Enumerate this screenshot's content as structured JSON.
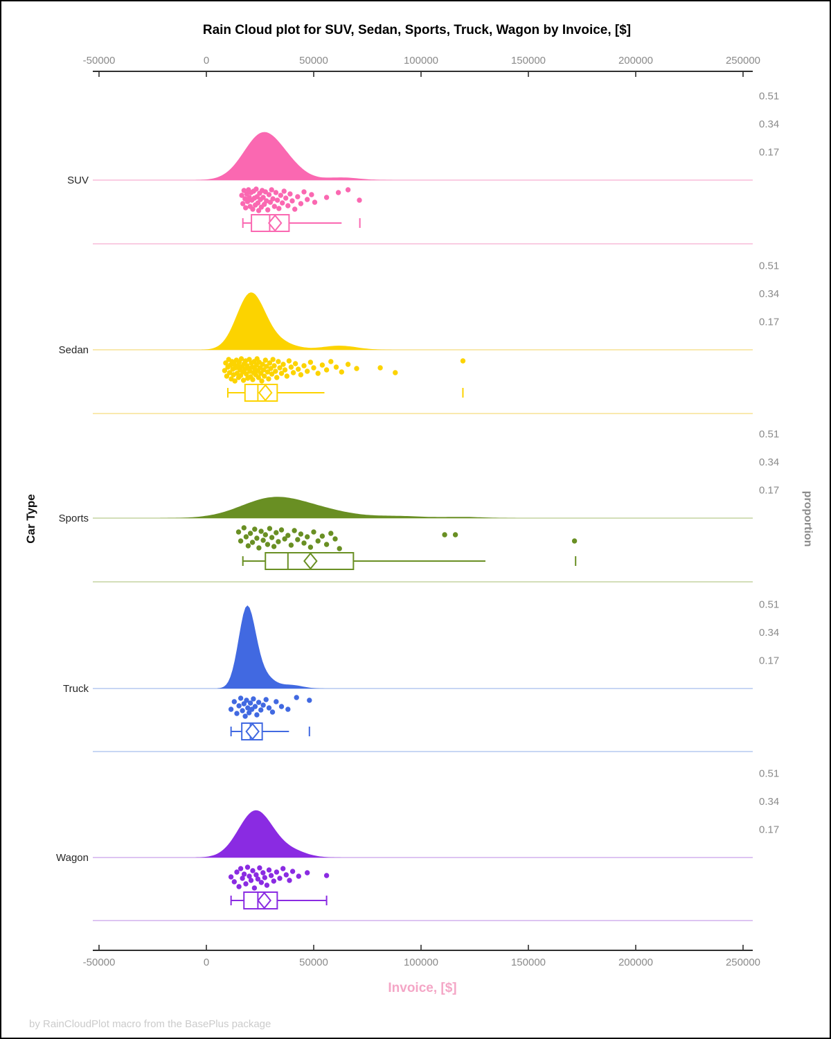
{
  "title": "Rain Cloud plot for SUV, Sedan, Sports, Truck, Wagon by Invoice, [$]",
  "footer": {
    "text": "by RainCloudPlot macro from the BasePlus package"
  },
  "x_axis": {
    "label": "Invoice, [$]",
    "tick_values": [
      -50000,
      0,
      50000,
      100000,
      150000,
      200000,
      250000
    ],
    "tick_labels": [
      "-50000",
      "0",
      "50000",
      "100000",
      "150000",
      "200000",
      "250000"
    ]
  },
  "left_axis": {
    "label": "Car Type"
  },
  "right_axis": {
    "label": "proportion",
    "tick_values": [
      0.17,
      0.34,
      0.51
    ],
    "tick_labels": [
      "0.17",
      "0.34",
      "0.51"
    ]
  },
  "styles": {
    "axis_color": "#2F2F2F",
    "tick_label_color": "#8A8A8A",
    "x_title_color": "#F4A6C6",
    "footer_color": "#CBCBCB"
  },
  "chart_data": {
    "type": "raincloud",
    "x_unit": "USD",
    "xlim": [
      -53000,
      254000
    ],
    "proportion_ticks": [
      0.17,
      0.34,
      0.51
    ],
    "legend_position": "none",
    "grid": false,
    "categories": [
      {
        "label": "SUV",
        "color": "#FA68B1",
        "tint": "#FAC4DE",
        "density_components": [
          {
            "mu": 26500,
            "sd": 9000,
            "h": 0.285
          },
          {
            "mu": 40000,
            "sd": 7000,
            "h": 0.04
          },
          {
            "mu": 63000,
            "sd": 8000,
            "h": 0.016
          }
        ],
        "box": {
          "whisker_low": 17000,
          "q1": 21000,
          "median": 29500,
          "q3": 38500,
          "whisker_high": 63000,
          "mean": 32000,
          "far_value": 71500,
          "right_cap": false
        },
        "rain": [
          [
            16500,
            22
          ],
          [
            17000,
            34
          ],
          [
            17500,
            15
          ],
          [
            18000,
            27
          ],
          [
            18300,
            40
          ],
          [
            18800,
            20
          ],
          [
            19200,
            31
          ],
          [
            19600,
            14
          ],
          [
            20000,
            25
          ],
          [
            20400,
            38
          ],
          [
            20800,
            18
          ],
          [
            21200,
            29
          ],
          [
            21600,
            42
          ],
          [
            22000,
            16
          ],
          [
            22400,
            26
          ],
          [
            22800,
            36
          ],
          [
            23200,
            13
          ],
          [
            23600,
            24
          ],
          [
            24000,
            33
          ],
          [
            24400,
            44
          ],
          [
            24800,
            19
          ],
          [
            25200,
            28
          ],
          [
            25600,
            39
          ],
          [
            26000,
            15
          ],
          [
            26500,
            25
          ],
          [
            27000,
            35
          ],
          [
            27500,
            17
          ],
          [
            28000,
            30
          ],
          [
            28600,
            43
          ],
          [
            29200,
            21
          ],
          [
            29800,
            32
          ],
          [
            30400,
            14
          ],
          [
            31000,
            27
          ],
          [
            31700,
            38
          ],
          [
            32400,
            18
          ],
          [
            33100,
            29
          ],
          [
            33800,
            41
          ],
          [
            34600,
            22
          ],
          [
            35400,
            33
          ],
          [
            36200,
            16
          ],
          [
            37000,
            26
          ],
          [
            38000,
            37
          ],
          [
            39000,
            20
          ],
          [
            40000,
            30
          ],
          [
            41200,
            42
          ],
          [
            42500,
            24
          ],
          [
            44000,
            34
          ],
          [
            45500,
            17
          ],
          [
            47000,
            28
          ],
          [
            49000,
            21
          ],
          [
            50500,
            32
          ],
          [
            56000,
            25
          ],
          [
            61500,
            18
          ],
          [
            66000,
            14
          ],
          [
            71300,
            29
          ]
        ]
      },
      {
        "label": "Sedan",
        "color": "#FCD300",
        "tint": "#F8E6A2",
        "density_components": [
          {
            "mu": 20500,
            "sd": 6500,
            "h": 0.33
          },
          {
            "mu": 32000,
            "sd": 8000,
            "h": 0.05
          },
          {
            "mu": 62000,
            "sd": 8000,
            "h": 0.025
          }
        ],
        "box": {
          "whisker_low": 10000,
          "q1": 18000,
          "median": 24000,
          "q3": 33000,
          "whisker_high": 55000,
          "mean": 27500,
          "far_value": 119500,
          "right_cap": false
        },
        "rain": [
          [
            8500,
            30
          ],
          [
            9000,
            19
          ],
          [
            9500,
            38
          ],
          [
            10000,
            25
          ],
          [
            10400,
            14
          ],
          [
            10800,
            33
          ],
          [
            11200,
            22
          ],
          [
            11600,
            42
          ],
          [
            12000,
            17
          ],
          [
            12300,
            28
          ],
          [
            12600,
            36
          ],
          [
            13000,
            21
          ],
          [
            13300,
            45
          ],
          [
            13600,
            26
          ],
          [
            14000,
            15
          ],
          [
            14300,
            34
          ],
          [
            14600,
            23
          ],
          [
            15000,
            40
          ],
          [
            15300,
            18
          ],
          [
            15600,
            29
          ],
          [
            16000,
            37
          ],
          [
            16300,
            13
          ],
          [
            16600,
            24
          ],
          [
            17000,
            32
          ],
          [
            17300,
            44
          ],
          [
            17600,
            20
          ],
          [
            18000,
            28
          ],
          [
            18300,
            16
          ],
          [
            18600,
            35
          ],
          [
            19000,
            23
          ],
          [
            19300,
            41
          ],
          [
            19600,
            27
          ],
          [
            20000,
            14
          ],
          [
            20300,
            31
          ],
          [
            20600,
            39
          ],
          [
            21000,
            19
          ],
          [
            21300,
            25
          ],
          [
            21600,
            43
          ],
          [
            22000,
            33
          ],
          [
            22300,
            17
          ],
          [
            22600,
            28
          ],
          [
            23000,
            36
          ],
          [
            23300,
            22
          ],
          [
            23600,
            13
          ],
          [
            24000,
            30
          ],
          [
            24300,
            40
          ],
          [
            24600,
            18
          ],
          [
            25000,
            26
          ],
          [
            25400,
            34
          ],
          [
            25800,
            45
          ],
          [
            26200,
            21
          ],
          [
            26600,
            29
          ],
          [
            27000,
            38
          ],
          [
            27500,
            15
          ],
          [
            28000,
            24
          ],
          [
            28500,
            32
          ],
          [
            29000,
            42
          ],
          [
            29500,
            19
          ],
          [
            30000,
            27
          ],
          [
            30500,
            35
          ],
          [
            31000,
            14
          ],
          [
            31600,
            23
          ],
          [
            32200,
            31
          ],
          [
            32800,
            40
          ],
          [
            33500,
            17
          ],
          [
            34200,
            26
          ],
          [
            35000,
            34
          ],
          [
            35800,
            21
          ],
          [
            36600,
            29
          ],
          [
            37500,
            38
          ],
          [
            38500,
            16
          ],
          [
            39500,
            25
          ],
          [
            40500,
            33
          ],
          [
            41500,
            20
          ],
          [
            42800,
            28
          ],
          [
            44000,
            36
          ],
          [
            45500,
            23
          ],
          [
            47000,
            31
          ],
          [
            48500,
            18
          ],
          [
            50000,
            26
          ],
          [
            52000,
            34
          ],
          [
            54000,
            22
          ],
          [
            56000,
            29
          ],
          [
            58000,
            17
          ],
          [
            60500,
            25
          ],
          [
            63000,
            32
          ],
          [
            66000,
            21
          ],
          [
            70000,
            27
          ],
          [
            81000,
            26
          ],
          [
            88000,
            33
          ],
          [
            119500,
            16
          ]
        ]
      },
      {
        "label": "Sports",
        "color": "#698F23",
        "tint": "#CDDAAE",
        "density_components": [
          {
            "mu": 31000,
            "sd": 15000,
            "h": 0.12
          },
          {
            "mu": 55000,
            "sd": 14000,
            "h": 0.035
          },
          {
            "mu": 90000,
            "sd": 12000,
            "h": 0.012
          },
          {
            "mu": 120000,
            "sd": 9000,
            "h": 0.007
          }
        ],
        "box": {
          "whisker_low": 17000,
          "q1": 27500,
          "median": 38000,
          "q3": 68500,
          "whisker_high": 130000,
          "mean": 48500,
          "far_value": 172000,
          "right_cap": false
        },
        "rain": [
          [
            15000,
            20
          ],
          [
            16000,
            33
          ],
          [
            17500,
            14
          ],
          [
            18500,
            27
          ],
          [
            19500,
            40
          ],
          [
            20500,
            22
          ],
          [
            21500,
            35
          ],
          [
            22500,
            16
          ],
          [
            23500,
            29
          ],
          [
            24500,
            43
          ],
          [
            25500,
            19
          ],
          [
            26500,
            32
          ],
          [
            27500,
            24
          ],
          [
            28500,
            38
          ],
          [
            29500,
            15
          ],
          [
            30500,
            28
          ],
          [
            31500,
            41
          ],
          [
            32500,
            21
          ],
          [
            33500,
            34
          ],
          [
            35000,
            17
          ],
          [
            36500,
            30
          ],
          [
            38000,
            25
          ],
          [
            39500,
            39
          ],
          [
            41000,
            18
          ],
          [
            42500,
            31
          ],
          [
            44000,
            23
          ],
          [
            45500,
            36
          ],
          [
            47000,
            27
          ],
          [
            48500,
            42
          ],
          [
            50000,
            20
          ],
          [
            52000,
            33
          ],
          [
            54000,
            26
          ],
          [
            56000,
            38
          ],
          [
            58000,
            22
          ],
          [
            60000,
            30
          ],
          [
            62000,
            44
          ],
          [
            111000,
            24
          ],
          [
            116000,
            24
          ],
          [
            171500,
            33
          ]
        ]
      },
      {
        "label": "Truck",
        "color": "#4169E1",
        "tint": "#BFD0F2",
        "density_components": [
          {
            "mu": 18800,
            "sd": 3900,
            "h": 0.455
          },
          {
            "mu": 25000,
            "sd": 5500,
            "h": 0.09
          },
          {
            "mu": 40000,
            "sd": 5000,
            "h": 0.02
          }
        ],
        "box": {
          "whisker_low": 11500,
          "q1": 16500,
          "median": 20500,
          "q3": 26000,
          "whisker_high": 38500,
          "mean": 21500,
          "far_value": 48000,
          "right_cap": false
        },
        "rain": [
          [
            11500,
            30
          ],
          [
            13000,
            19
          ],
          [
            14200,
            36
          ],
          [
            15200,
            25
          ],
          [
            16000,
            14
          ],
          [
            16800,
            32
          ],
          [
            17500,
            22
          ],
          [
            18100,
            40
          ],
          [
            18700,
            17
          ],
          [
            19300,
            28
          ],
          [
            19900,
            35
          ],
          [
            20500,
            21
          ],
          [
            21200,
            30
          ],
          [
            21900,
            15
          ],
          [
            22700,
            26
          ],
          [
            23500,
            38
          ],
          [
            24400,
            20
          ],
          [
            25400,
            31
          ],
          [
            26500,
            24
          ],
          [
            27800,
            16
          ],
          [
            29200,
            28
          ],
          [
            30800,
            34
          ],
          [
            32500,
            19
          ],
          [
            35000,
            26
          ],
          [
            38000,
            30
          ],
          [
            42000,
            13
          ],
          [
            48000,
            17
          ]
        ]
      },
      {
        "label": "Wagon",
        "color": "#8A2BE2",
        "tint": "#D8BBF0",
        "density_components": [
          {
            "mu": 23000,
            "sd": 8000,
            "h": 0.285
          },
          {
            "mu": 40000,
            "sd": 7000,
            "h": 0.035
          }
        ],
        "box": {
          "whisker_low": 11500,
          "q1": 17500,
          "median": 24000,
          "q3": 33000,
          "whisker_high": 56000,
          "mean": 27000,
          "far_value": null,
          "right_cap": true
        },
        "rain": [
          [
            11500,
            28
          ],
          [
            13000,
            35
          ],
          [
            14200,
            21
          ],
          [
            15200,
            42
          ],
          [
            16000,
            16
          ],
          [
            16800,
            30
          ],
          [
            17600,
            24
          ],
          [
            18400,
            38
          ],
          [
            19200,
            14
          ],
          [
            20000,
            27
          ],
          [
            20800,
            33
          ],
          [
            21600,
            19
          ],
          [
            22400,
            44
          ],
          [
            23200,
            25
          ],
          [
            24000,
            31
          ],
          [
            24800,
            15
          ],
          [
            25600,
            36
          ],
          [
            26400,
            22
          ],
          [
            27200,
            29
          ],
          [
            28200,
            40
          ],
          [
            29200,
            18
          ],
          [
            30200,
            26
          ],
          [
            31400,
            34
          ],
          [
            32700,
            21
          ],
          [
            34200,
            30
          ],
          [
            35700,
            16
          ],
          [
            37200,
            25
          ],
          [
            38700,
            33
          ],
          [
            40200,
            20
          ],
          [
            43000,
            27
          ],
          [
            47000,
            22
          ],
          [
            56000,
            26
          ]
        ]
      }
    ]
  }
}
